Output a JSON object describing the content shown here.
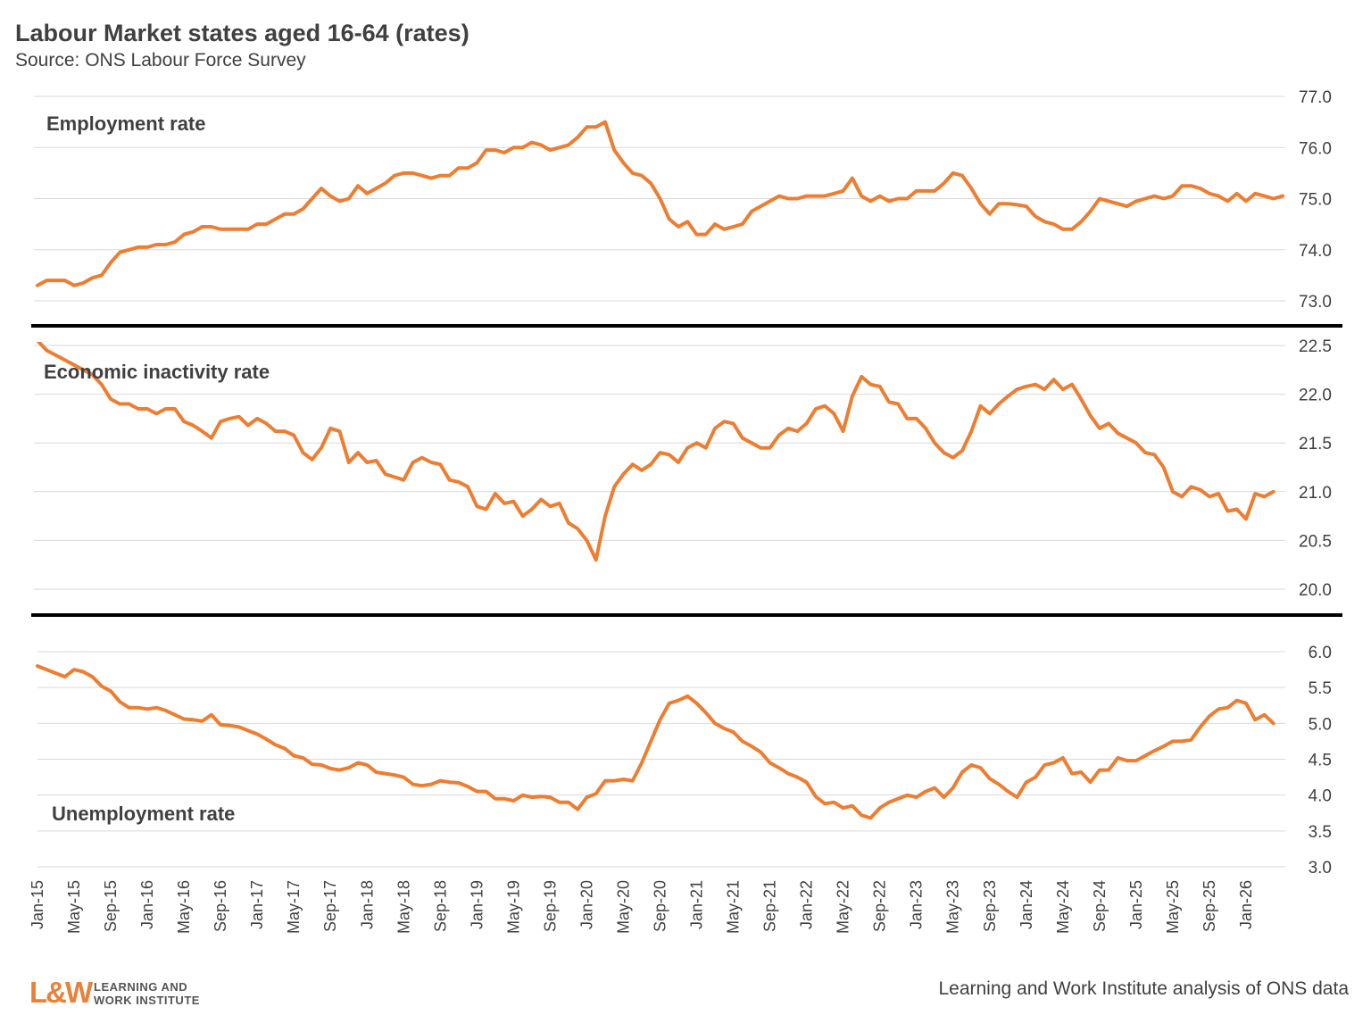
{
  "title": "Labour Market states aged 16-64 (rates)",
  "subtitle": "Source: ONS Labour Force Survey",
  "footer": "Learning and Work Institute analysis of ONS data",
  "logo": {
    "mark": "L&W",
    "line1": "LEARNING AND",
    "line2": "WORK INSTITUTE"
  },
  "colors": {
    "line": "#ed7d31",
    "grid": "#d9d9d9",
    "separator": "#000000",
    "text": "#404040"
  },
  "chart_data": [
    {
      "type": "line",
      "title": "Employment rate",
      "x_start": "Jan-15",
      "x_ticks": [
        "Jan-15",
        "May-15",
        "Sep-15",
        "Jan-16",
        "May-16",
        "Sep-16",
        "Jan-17",
        "May-17",
        "Sep-17",
        "Jan-18",
        "May-18",
        "Sep-18",
        "Jan-19",
        "May-19",
        "Sep-19",
        "Jan-20",
        "May-20",
        "Sep-20",
        "Jan-21",
        "May-21",
        "Sep-21",
        "Jan-22",
        "May-22",
        "Sep-22",
        "Jan-23",
        "May-23",
        "Sep-23",
        "Jan-24",
        "May-24",
        "Sep-24",
        "Jan-25",
        "May-25",
        "Sep-25",
        "Jan-26"
      ],
      "ylim": [
        73.0,
        77.0
      ],
      "y_ticks": [
        "73.0",
        "74.0",
        "75.0",
        "76.0",
        "77.0"
      ],
      "values": [
        73.3,
        73.4,
        73.4,
        73.4,
        73.3,
        73.35,
        73.45,
        73.5,
        73.75,
        73.95,
        74.0,
        74.05,
        74.05,
        74.1,
        74.1,
        74.15,
        74.3,
        74.35,
        74.45,
        74.45,
        74.4,
        74.4,
        74.4,
        74.4,
        74.5,
        74.5,
        74.6,
        74.7,
        74.7,
        74.8,
        75.0,
        75.2,
        75.05,
        74.95,
        75.0,
        75.25,
        75.1,
        75.2,
        75.3,
        75.45,
        75.5,
        75.5,
        75.45,
        75.4,
        75.45,
        75.45,
        75.6,
        75.6,
        75.7,
        75.95,
        75.95,
        75.9,
        76.0,
        76.0,
        76.1,
        76.05,
        75.95,
        76.0,
        76.05,
        76.2,
        76.4,
        76.4,
        76.5,
        75.95,
        75.7,
        75.5,
        75.45,
        75.3,
        75.0,
        74.6,
        74.45,
        74.55,
        74.3,
        74.3,
        74.5,
        74.4,
        74.45,
        74.5,
        74.75,
        74.85,
        74.95,
        75.05,
        75.0,
        75.0,
        75.05,
        75.05,
        75.05,
        75.1,
        75.15,
        75.4,
        75.05,
        74.95,
        75.05,
        74.95,
        75.0,
        75.0,
        75.15,
        75.15,
        75.15,
        75.3,
        75.5,
        75.45,
        75.2,
        74.9,
        74.7,
        74.9,
        74.9,
        74.88,
        74.85,
        74.65,
        74.55,
        74.5,
        74.4,
        74.4,
        74.55,
        74.75,
        75.0,
        74.95,
        74.9,
        74.85,
        74.95,
        75.0,
        75.05,
        75.0,
        75.05,
        75.25,
        75.25,
        75.2,
        75.1,
        75.05,
        74.95,
        75.1,
        74.95,
        75.1,
        75.05,
        75.0,
        75.05
      ]
    },
    {
      "type": "line",
      "title": "Economic inactivity rate",
      "ylim": [
        20.0,
        22.5
      ],
      "y_ticks": [
        "20.0",
        "20.5",
        "21.0",
        "21.5",
        "22.0",
        "22.5"
      ],
      "values": [
        22.55,
        22.45,
        22.4,
        22.35,
        22.3,
        22.25,
        22.2,
        22.1,
        21.95,
        21.9,
        21.9,
        21.85,
        21.85,
        21.8,
        21.85,
        21.85,
        21.72,
        21.68,
        21.62,
        21.55,
        21.72,
        21.75,
        21.77,
        21.68,
        21.75,
        21.7,
        21.62,
        21.62,
        21.58,
        21.4,
        21.33,
        21.45,
        21.65,
        21.62,
        21.3,
        21.4,
        21.3,
        21.32,
        21.18,
        21.15,
        21.12,
        21.3,
        21.35,
        21.3,
        21.28,
        21.12,
        21.1,
        21.05,
        20.85,
        20.82,
        20.98,
        20.88,
        20.9,
        20.75,
        20.82,
        20.92,
        20.85,
        20.88,
        20.68,
        20.62,
        20.5,
        20.3,
        20.75,
        21.05,
        21.18,
        21.28,
        21.22,
        21.28,
        21.4,
        21.38,
        21.3,
        21.45,
        21.5,
        21.45,
        21.65,
        21.72,
        21.7,
        21.55,
        21.5,
        21.45,
        21.45,
        21.58,
        21.65,
        21.62,
        21.7,
        21.85,
        21.88,
        21.8,
        21.62,
        21.98,
        22.18,
        22.1,
        22.08,
        21.92,
        21.9,
        21.75,
        21.75,
        21.65,
        21.5,
        21.4,
        21.35,
        21.42,
        21.62,
        21.88,
        21.8,
        21.9,
        21.98,
        22.05,
        22.08,
        22.1,
        22.05,
        22.15,
        22.05,
        22.1,
        21.95,
        21.78,
        21.65,
        21.7,
        21.6,
        21.55,
        21.5,
        21.4,
        21.38,
        21.25,
        21.0,
        20.95,
        21.05,
        21.02,
        20.95,
        20.98,
        20.8,
        20.82,
        20.72,
        20.98,
        20.95,
        21.0
      ]
    },
    {
      "type": "line",
      "title": "Unemployment rate",
      "ylim": [
        3.0,
        6.0
      ],
      "y_ticks": [
        "3.0",
        "3.5",
        "4.0",
        "4.5",
        "5.0",
        "5.5",
        "6.0"
      ],
      "values": [
        5.8,
        5.75,
        5.7,
        5.65,
        5.75,
        5.72,
        5.65,
        5.52,
        5.45,
        5.3,
        5.22,
        5.22,
        5.2,
        5.22,
        5.18,
        5.12,
        5.06,
        5.05,
        5.03,
        5.12,
        4.98,
        4.97,
        4.95,
        4.9,
        4.85,
        4.78,
        4.7,
        4.65,
        4.55,
        4.52,
        4.43,
        4.42,
        4.37,
        4.35,
        4.38,
        4.45,
        4.42,
        4.32,
        4.3,
        4.28,
        4.25,
        4.15,
        4.13,
        4.15,
        4.2,
        4.18,
        4.17,
        4.12,
        4.05,
        4.05,
        3.95,
        3.95,
        3.92,
        4.0,
        3.97,
        3.98,
        3.97,
        3.9,
        3.9,
        3.8,
        3.97,
        4.02,
        4.2,
        4.2,
        4.22,
        4.2,
        4.45,
        4.75,
        5.05,
        5.28,
        5.32,
        5.38,
        5.28,
        5.15,
        5.0,
        4.93,
        4.88,
        4.75,
        4.68,
        4.6,
        4.45,
        4.38,
        4.3,
        4.25,
        4.18,
        3.98,
        3.88,
        3.9,
        3.82,
        3.85,
        3.72,
        3.68,
        3.82,
        3.9,
        3.95,
        4.0,
        3.97,
        4.05,
        4.1,
        3.97,
        4.1,
        4.32,
        4.42,
        4.38,
        4.23,
        4.15,
        4.05,
        3.97,
        4.18,
        4.25,
        4.42,
        4.45,
        4.52,
        4.3,
        4.32,
        4.18,
        4.35,
        4.35,
        4.52,
        4.48,
        4.48,
        4.55,
        4.62,
        4.68,
        4.75,
        4.75,
        4.77,
        4.95,
        5.1,
        5.2,
        5.22,
        5.32,
        5.28,
        5.05,
        5.12,
        5.0
      ]
    }
  ]
}
